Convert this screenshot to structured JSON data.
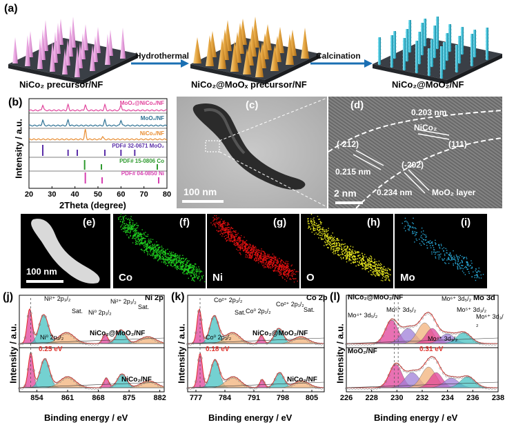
{
  "panel_a": {
    "label": "(a)",
    "arrow1_label": "Hydrothermal",
    "arrow2_label": "Calcination",
    "caption1": "NiCo₂ precursor/NF",
    "caption2": "NiCo₂@MoOₓ precursor/NF",
    "caption3": "NiCo₂@MoO₂/NF",
    "colors": {
      "cone_pink": "#e9a3e0",
      "cone_gold": "#e3a23c",
      "wire_cyan": "#3fc0d8",
      "substrate": "#3a3f46",
      "arrow": "#1a6fb3"
    }
  },
  "panel_b": {
    "label": "(b)",
    "chart_data": {
      "type": "line",
      "xlabel": "2Theta (degree)",
      "ylabel": "Intensity / a.u.",
      "xlim": [
        20,
        80
      ],
      "xticks": [
        "20",
        "30",
        "40",
        "50",
        "60",
        "70",
        "80"
      ],
      "series": [
        {
          "name": "MoO₂@NiCo₂/NF",
          "color": "#e0419a",
          "peaks": [
            26,
            37,
            44.5,
            53,
            60
          ]
        },
        {
          "name": "MoO₂/NF",
          "color": "#2a6f92",
          "peaks": [
            26,
            37,
            53,
            60
          ]
        },
        {
          "name": "NiCo₂/NF",
          "color": "#e88b2e",
          "peaks": [
            44.5,
            52
          ]
        },
        {
          "name": "PDF# 32-0671 MoO₂",
          "color": "#5a2ea8",
          "peaks": [
            26,
            37,
            41,
            53,
            60,
            66
          ]
        },
        {
          "name": "PDF# 15-0806 Co",
          "color": "#2e9a2e",
          "peaks": [
            44.2,
            51.5,
            75.8
          ]
        },
        {
          "name": "PDF# 04-0850 Ni",
          "color": "#d63fb0",
          "peaks": [
            44.5,
            51.8,
            76.4
          ]
        }
      ]
    }
  },
  "panel_c": {
    "label": "(c)",
    "scalebar": "100 nm"
  },
  "panel_d": {
    "label": "(d)",
    "scalebar": "2 nm",
    "annotations": [
      "0.203 nm",
      "NiCo₂",
      "(111)",
      "(-212)",
      "0.215 nm",
      "(-202)",
      "0.234 nm",
      "MoO₂ layer"
    ]
  },
  "panel_e": {
    "label": "(e)",
    "scalebar": "100 nm"
  },
  "panel_f": {
    "label": "(f)",
    "element": "Co",
    "color": "#1fd01f"
  },
  "panel_g": {
    "label": "(g)",
    "element": "Ni",
    "color": "#e01010"
  },
  "panel_h": {
    "label": "(h)",
    "element": "O",
    "color": "#e6e620"
  },
  "panel_i": {
    "label": "(i)",
    "element": "Mo",
    "color": "#29a9d8"
  },
  "panel_j": {
    "label": "(j)",
    "title": "Ni 2p",
    "ylabel": "Intensity / a.u.",
    "xlabel": "Binding energy / eV",
    "xticks": [
      "854",
      "861",
      "868",
      "875",
      "882"
    ],
    "top_sample": "NiCo₂@MoO₂/NF",
    "bottom_sample": "NiCo₂/NF",
    "shift": "0.25 eV",
    "peak_labels": [
      "Ni²⁺ 2p₃/₂",
      "Sat.",
      "Ni⁰ 2p₁/₂",
      "Ni²⁺ 2p₁/₂",
      "Sat.",
      "Ni⁰ 2p₃/₂"
    ]
  },
  "panel_k": {
    "label": "(k)",
    "title": "Co 2p",
    "ylabel": "Intensity / a.u.",
    "xlabel": "Binding energy / eV",
    "xticks": [
      "777",
      "784",
      "791",
      "798",
      "805"
    ],
    "top_sample": "NiCo₂@MoO₂/NF",
    "bottom_sample": "NiCo₂/NF",
    "shift": "0.18 eV",
    "peak_labels": [
      "Co²⁺ 2p₃/₂",
      "Sat.",
      "Co⁰ 2p₁/₂",
      "Co²⁺ 2p₁/₂",
      "Sat.",
      "Co⁰ 2p₃/₂"
    ]
  },
  "panel_l": {
    "label": "(l)",
    "title": "Mo 3d",
    "ylabel": "Intensity / a.u.",
    "xlabel": "Binding energy / eV",
    "xticks": [
      "226",
      "228",
      "230",
      "232",
      "234",
      "236",
      "238"
    ],
    "top_sample": "NiCo₂@MoO₂/NF",
    "bottom_sample": "MoO₂/NF",
    "shift": "0.31 eV",
    "peak_labels": [
      "Mo⁶⁺ 3d₅/₂",
      "Mo⁴⁺ 3d₅/₂",
      "Mo⁵⁺ 3d₅/₂",
      "Mo⁵⁺ 3d₃/₂",
      "Mo⁶⁺ 3d₃/₂",
      "Mo⁴⁺ 3d₃/₂"
    ]
  }
}
